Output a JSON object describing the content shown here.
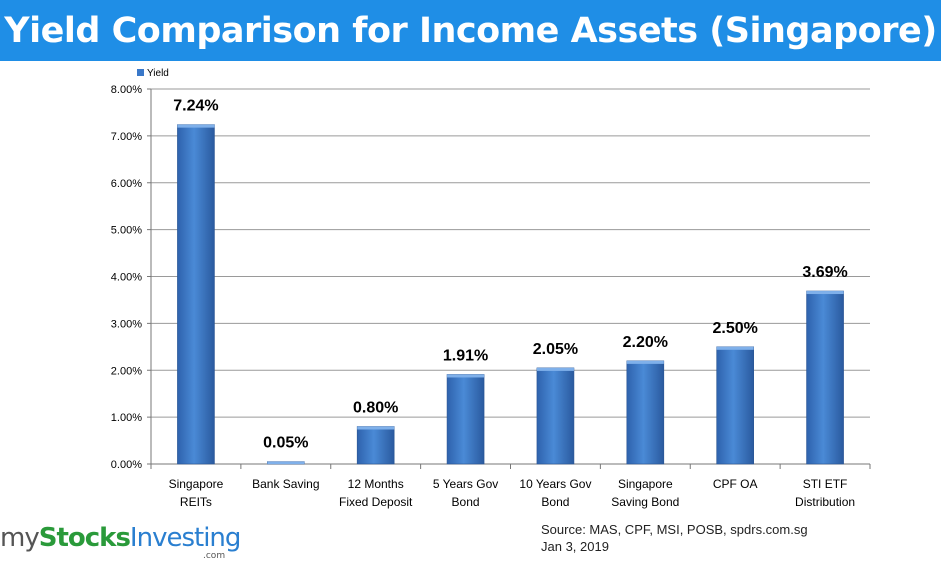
{
  "banner": {
    "title": "Yield Comparison for Income Assets (Singapore)"
  },
  "chart_data": {
    "type": "bar",
    "title": "",
    "xlabel": "",
    "ylabel": "",
    "ylim": [
      0,
      8
    ],
    "yticks": [
      "0.00%",
      "1.00%",
      "2.00%",
      "3.00%",
      "4.00%",
      "5.00%",
      "6.00%",
      "7.00%",
      "8.00%"
    ],
    "grid": true,
    "legend": {
      "position": "top-left",
      "entries": [
        "Yield"
      ]
    },
    "categories": [
      [
        "Singapore",
        "REITs"
      ],
      [
        "Bank Saving"
      ],
      [
        "12 Months",
        "Fixed Deposit"
      ],
      [
        "5 Years Gov",
        "Bond"
      ],
      [
        "10 Years Gov",
        "Bond"
      ],
      [
        "Singapore",
        "Saving Bond"
      ],
      [
        "CPF OA"
      ],
      [
        "STI ETF",
        "Distribution"
      ]
    ],
    "series": [
      {
        "name": "Yield",
        "values": [
          7.24,
          0.05,
          0.8,
          1.91,
          2.05,
          2.2,
          2.5,
          3.69
        ],
        "data_labels": [
          "7.24%",
          "0.05%",
          "0.80%",
          "1.91%",
          "2.05%",
          "2.20%",
          "2.50%",
          "3.69%"
        ],
        "color": "#3a78c9"
      }
    ]
  },
  "footer": {
    "logo": {
      "my": "my",
      "stocks": "Stocks",
      "investing": "Investing",
      "dotcom": ".com"
    },
    "source_line1": "Source: MAS, CPF, MSI, POSB, spdrs.com.sg",
    "source_line2": "Jan 3, 2019"
  },
  "colors": {
    "banner": "#1f8ee6",
    "bar": "#3a78c9",
    "grid": "#9a9a9a"
  }
}
